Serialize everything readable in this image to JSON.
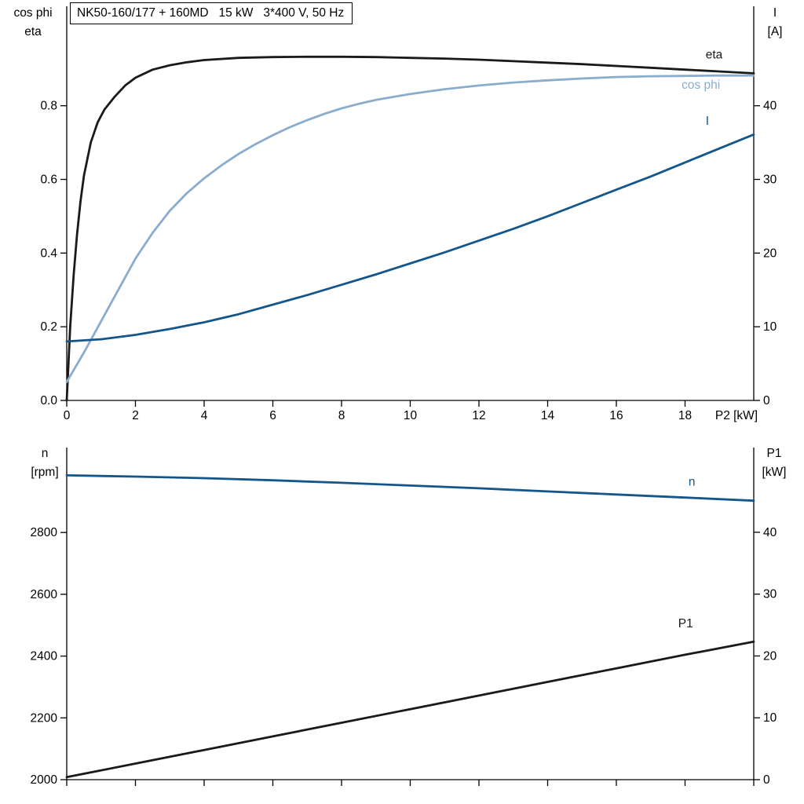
{
  "window": {
    "background": "#ffffff"
  },
  "title_box": {
    "text": "NK50-160/177 + 160MD   15 kW   3*400 V, 50 Hz"
  },
  "colors": {
    "black": "#1a1a1a",
    "dark_blue": "#15568a",
    "light_blue": "#8aadcd",
    "axis": "#000000"
  },
  "chart_data": [
    {
      "type": "line",
      "name": "motor-performance-top",
      "grid": false,
      "legend_position": "curve-end-labels",
      "x_axis": {
        "label": "P2 [kW]",
        "range": [
          0,
          20
        ],
        "ticks": [
          0,
          2,
          4,
          6,
          8,
          10,
          12,
          14,
          16,
          18
        ],
        "show_labels": true
      },
      "left_axis": {
        "header": [
          "cos phi",
          "eta"
        ],
        "range": [
          0,
          1.07
        ],
        "ticks": [
          {
            "v": 0,
            "t": "0.0"
          },
          {
            "v": 0.2,
            "t": "0.2"
          },
          {
            "v": 0.4,
            "t": "0.4"
          },
          {
            "v": 0.6,
            "t": "0.6"
          },
          {
            "v": 0.8,
            "t": "0.8"
          }
        ]
      },
      "right_axis": {
        "header": [
          "I",
          "[A]"
        ],
        "range": [
          0,
          53.5
        ],
        "ticks": [
          {
            "v": 0,
            "t": "0"
          },
          {
            "v": 10,
            "t": "10"
          },
          {
            "v": 20,
            "t": "20"
          },
          {
            "v": 30,
            "t": "30"
          },
          {
            "v": 40,
            "t": "40"
          }
        ]
      },
      "series": [
        {
          "name": "eta",
          "axis": "left",
          "color": "#1a1a1a",
          "label": {
            "text": "eta",
            "x": 18.6,
            "y": 0.928
          },
          "points": [
            [
              0,
              0
            ],
            [
              0.1,
              0.2
            ],
            [
              0.2,
              0.34
            ],
            [
              0.3,
              0.45
            ],
            [
              0.4,
              0.54
            ],
            [
              0.5,
              0.61
            ],
            [
              0.7,
              0.7
            ],
            [
              0.9,
              0.755
            ],
            [
              1.1,
              0.79
            ],
            [
              1.4,
              0.825
            ],
            [
              1.7,
              0.855
            ],
            [
              2,
              0.876
            ],
            [
              2.5,
              0.898
            ],
            [
              3,
              0.91
            ],
            [
              3.5,
              0.918
            ],
            [
              4,
              0.924
            ],
            [
              5,
              0.93
            ],
            [
              6,
              0.932
            ],
            [
              7,
              0.933
            ],
            [
              8,
              0.933
            ],
            [
              9,
              0.932
            ],
            [
              10,
              0.93
            ],
            [
              11,
              0.928
            ],
            [
              12,
              0.925
            ],
            [
              13,
              0.921
            ],
            [
              14,
              0.917
            ],
            [
              15,
              0.913
            ],
            [
              16,
              0.908
            ],
            [
              17,
              0.903
            ],
            [
              18,
              0.898
            ],
            [
              19,
              0.893
            ],
            [
              20,
              0.888
            ]
          ]
        },
        {
          "name": "cos-phi",
          "axis": "left",
          "color": "#8aadcd",
          "label": {
            "text": "cos phi",
            "x": 17.9,
            "y": 0.846
          },
          "points": [
            [
              0,
              0.05
            ],
            [
              0.5,
              0.13
            ],
            [
              1,
              0.215
            ],
            [
              1.5,
              0.3
            ],
            [
              2,
              0.385
            ],
            [
              2.5,
              0.455
            ],
            [
              3,
              0.515
            ],
            [
              3.5,
              0.563
            ],
            [
              4,
              0.603
            ],
            [
              4.5,
              0.638
            ],
            [
              5,
              0.669
            ],
            [
              5.5,
              0.696
            ],
            [
              6,
              0.72
            ],
            [
              6.5,
              0.742
            ],
            [
              7,
              0.761
            ],
            [
              7.5,
              0.778
            ],
            [
              8,
              0.793
            ],
            [
              8.5,
              0.805
            ],
            [
              9,
              0.816
            ],
            [
              10,
              0.832
            ],
            [
              11,
              0.845
            ],
            [
              12,
              0.855
            ],
            [
              13,
              0.863
            ],
            [
              14,
              0.869
            ],
            [
              15,
              0.874
            ],
            [
              16,
              0.878
            ],
            [
              17,
              0.88
            ],
            [
              18,
              0.881
            ],
            [
              19,
              0.882
            ],
            [
              20,
              0.882
            ]
          ]
        },
        {
          "name": "I",
          "axis": "right",
          "color": "#15568a",
          "label": {
            "text": "I",
            "x": 18.6,
            "y": 37.4
          },
          "points": [
            [
              0,
              8.0
            ],
            [
              1,
              8.3
            ],
            [
              2,
              8.9
            ],
            [
              3,
              9.7
            ],
            [
              4,
              10.6
            ],
            [
              5,
              11.7
            ],
            [
              6,
              13.0
            ],
            [
              7,
              14.3
            ],
            [
              8,
              15.7
            ],
            [
              9,
              17.1
            ],
            [
              10,
              18.6
            ],
            [
              11,
              20.1
            ],
            [
              12,
              21.7
            ],
            [
              13,
              23.3
            ],
            [
              14,
              25.0
            ],
            [
              15,
              26.8
            ],
            [
              16,
              28.6
            ],
            [
              17,
              30.4
            ],
            [
              18,
              32.3
            ],
            [
              19,
              34.2
            ],
            [
              20,
              36.1
            ]
          ]
        }
      ]
    },
    {
      "type": "line",
      "name": "motor-performance-bottom",
      "grid": false,
      "legend_position": "curve-end-labels",
      "x_axis": {
        "label": "",
        "range": [
          0,
          20
        ],
        "ticks": [
          0,
          2,
          4,
          6,
          8,
          10,
          12,
          14,
          16,
          18,
          20
        ],
        "show_labels": false
      },
      "left_axis": {
        "header": [
          "n",
          "[rpm]"
        ],
        "range": [
          2000,
          3075
        ],
        "ticks": [
          {
            "v": 2000,
            "t": "2000"
          },
          {
            "v": 2200,
            "t": "2200"
          },
          {
            "v": 2400,
            "t": "2400"
          },
          {
            "v": 2600,
            "t": "2600"
          },
          {
            "v": 2800,
            "t": "2800"
          }
        ]
      },
      "right_axis": {
        "header": [
          "P1",
          "[kW]"
        ],
        "range": [
          0,
          53.7
        ],
        "ticks": [
          {
            "v": 0,
            "t": "0"
          },
          {
            "v": 10,
            "t": "10"
          },
          {
            "v": 20,
            "t": "20"
          },
          {
            "v": 30,
            "t": "30"
          },
          {
            "v": 40,
            "t": "40"
          }
        ]
      },
      "series": [
        {
          "name": "n",
          "axis": "left",
          "color": "#15568a",
          "label": {
            "text": "n",
            "x": 18.1,
            "y": 2952
          },
          "points": [
            [
              0,
              2985
            ],
            [
              2,
              2981
            ],
            [
              4,
              2976
            ],
            [
              6,
              2969
            ],
            [
              8,
              2961
            ],
            [
              10,
              2952
            ],
            [
              12,
              2943
            ],
            [
              14,
              2933
            ],
            [
              16,
              2923
            ],
            [
              18,
              2913
            ],
            [
              20,
              2903
            ]
          ]
        },
        {
          "name": "P1",
          "axis": "right",
          "color": "#1a1a1a",
          "label": {
            "text": "P1",
            "x": 17.8,
            "y": 24.6
          },
          "points": [
            [
              0,
              0.4
            ],
            [
              2,
              2.6
            ],
            [
              4,
              4.8
            ],
            [
              6,
              7.0
            ],
            [
              8,
              9.2
            ],
            [
              10,
              11.4
            ],
            [
              12,
              13.6
            ],
            [
              14,
              15.8
            ],
            [
              16,
              18.0
            ],
            [
              18,
              20.2
            ],
            [
              20,
              22.3
            ]
          ]
        }
      ]
    }
  ]
}
